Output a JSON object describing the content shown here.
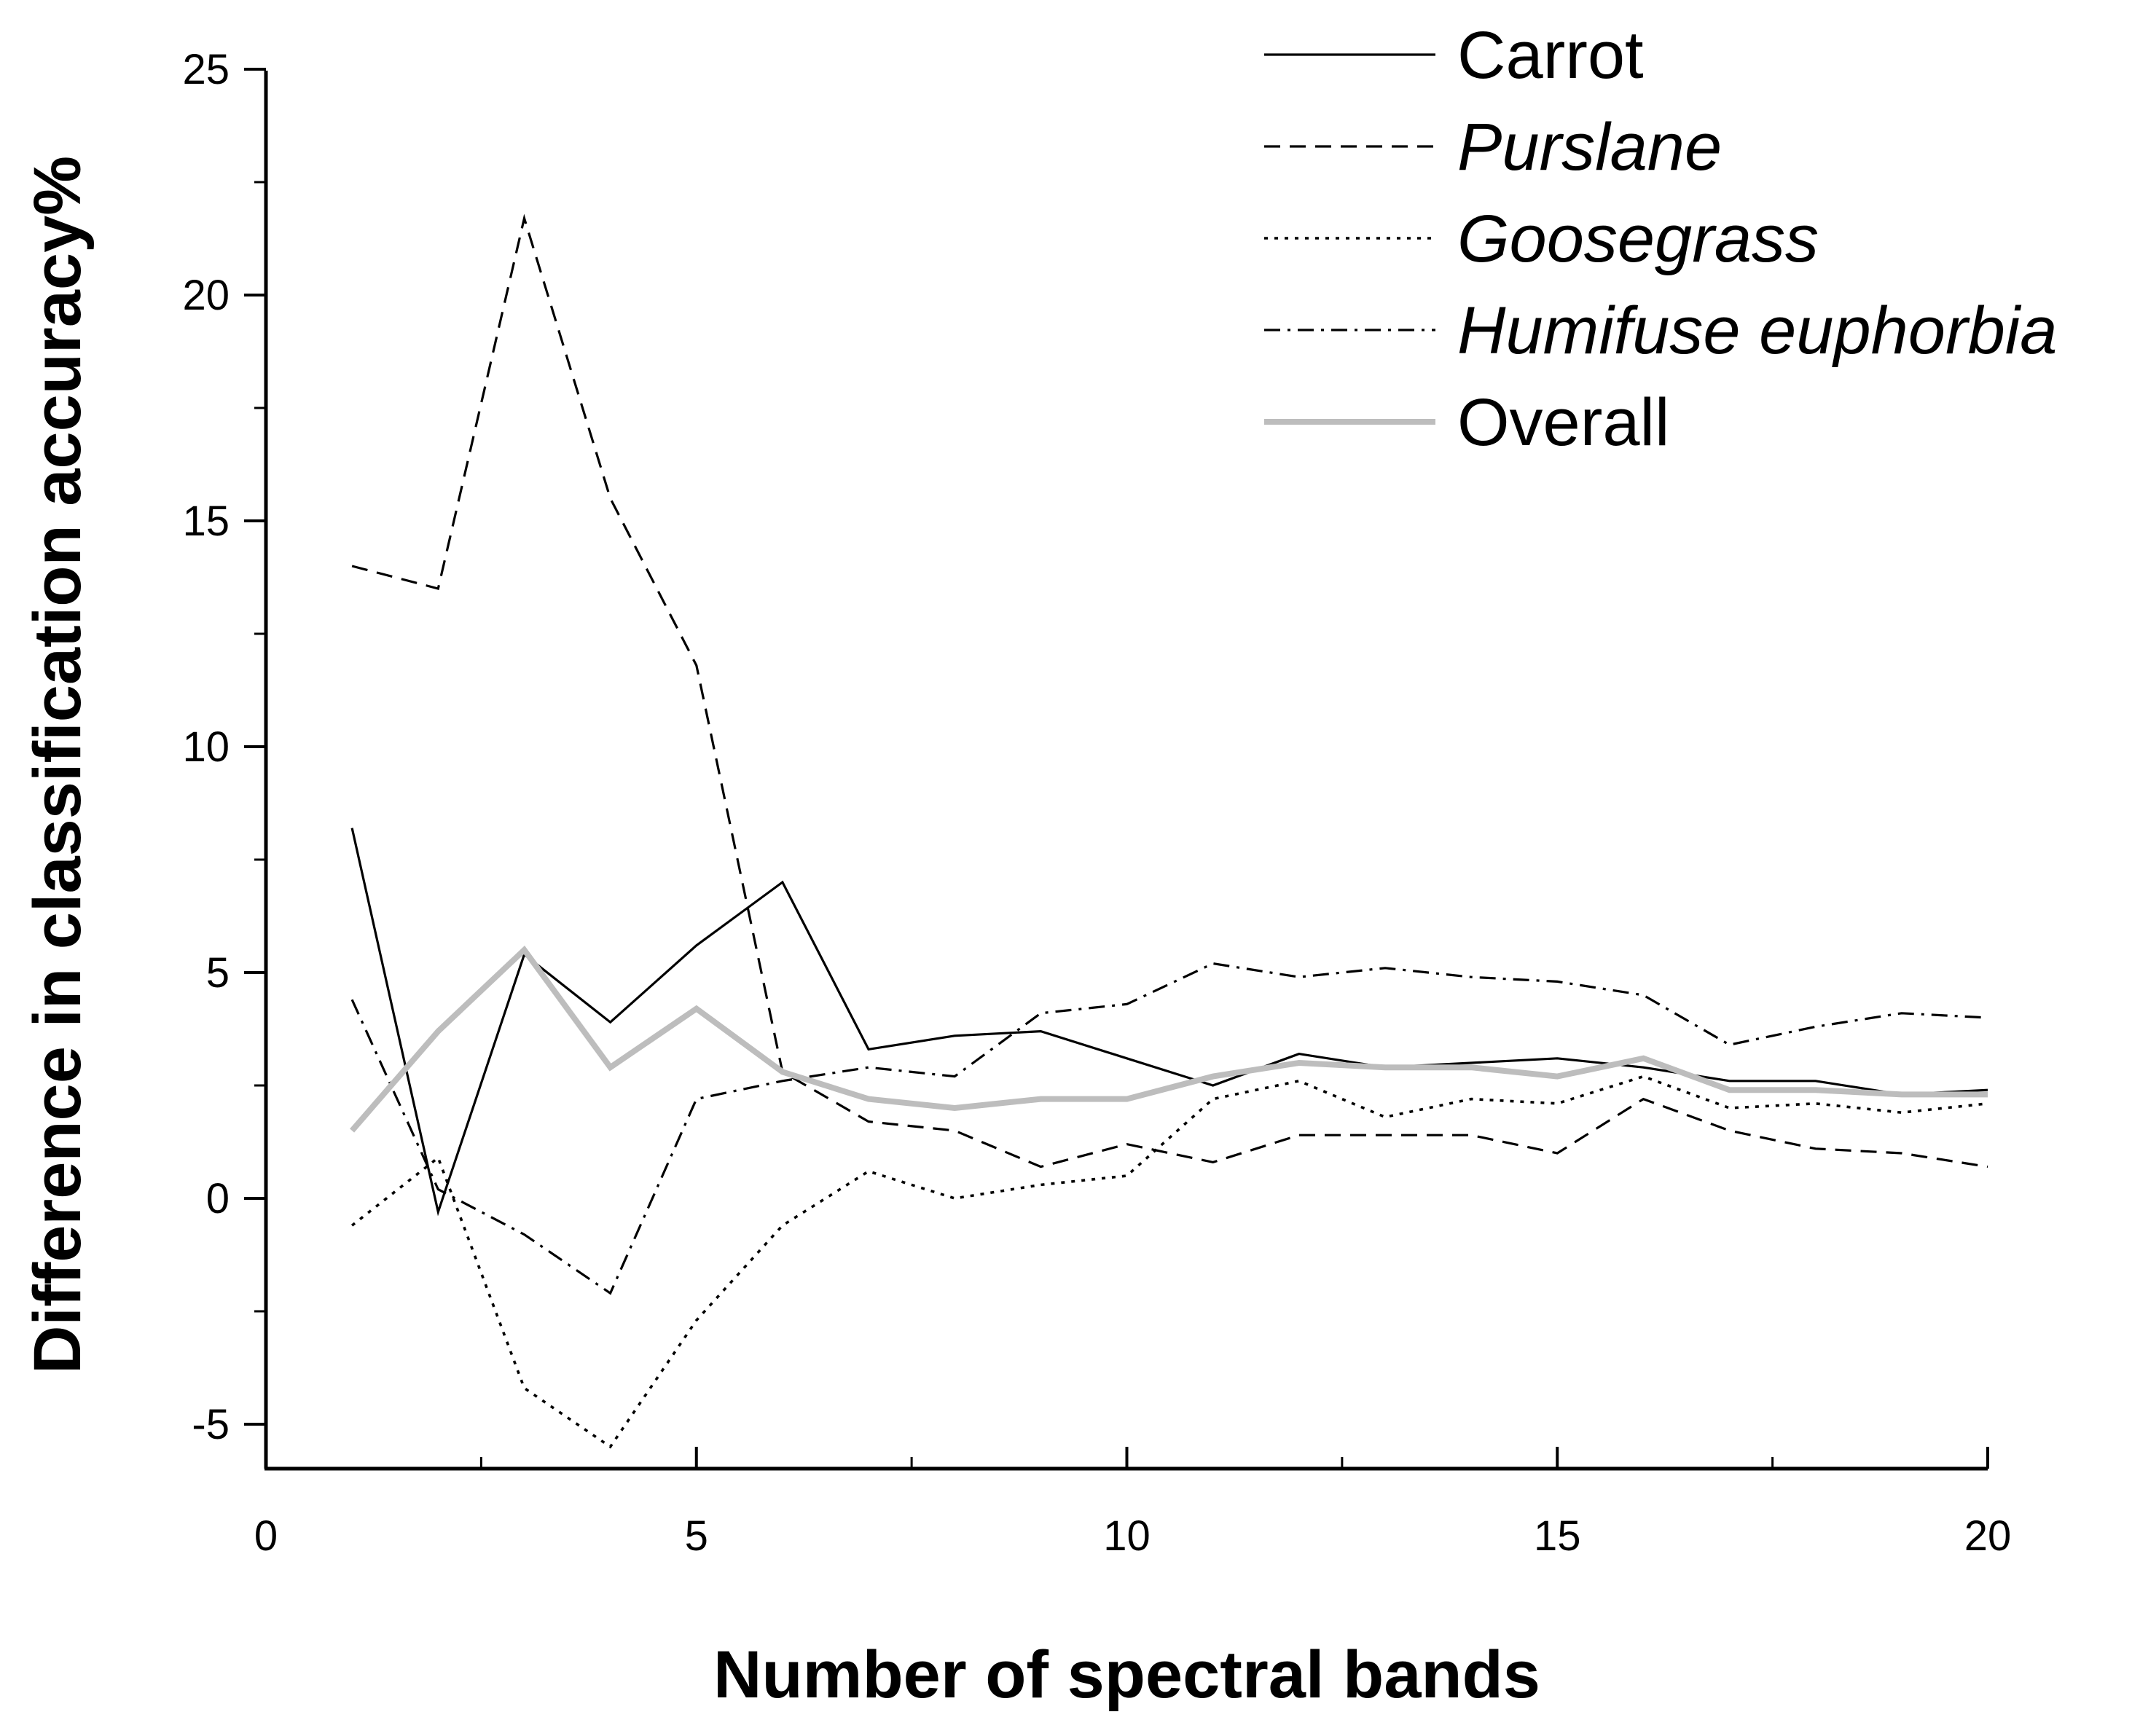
{
  "chart_data": {
    "type": "line",
    "title": "",
    "xlabel": "Number of spectral bands",
    "ylabel": "Difference in classification accuracy%",
    "xlim": [
      0,
      20
    ],
    "ylim": [
      -6,
      25
    ],
    "x_ticks": [
      0,
      5,
      10,
      15,
      20
    ],
    "y_ticks": [
      -5,
      0,
      5,
      10,
      15,
      20,
      25
    ],
    "grid": false,
    "legend_position": "top-right",
    "x": [
      1,
      2,
      3,
      4,
      5,
      6,
      7,
      8,
      9,
      10,
      11,
      12,
      13,
      14,
      15,
      16,
      17,
      18,
      19,
      20
    ],
    "series": [
      {
        "name": "Carrot",
        "italic": false,
        "style": "solid",
        "color": "#000000",
        "values": [
          8.2,
          -0.3,
          5.4,
          3.9,
          5.6,
          7.0,
          3.3,
          3.6,
          3.7,
          3.1,
          2.5,
          3.2,
          2.9,
          3.0,
          3.1,
          2.9,
          2.6,
          2.6,
          2.3,
          2.4
        ]
      },
      {
        "name": "Purslane",
        "italic": true,
        "style": "dashed",
        "color": "#000000",
        "values": [
          14.0,
          13.5,
          21.7,
          15.5,
          11.8,
          2.8,
          1.7,
          1.5,
          0.7,
          1.2,
          0.8,
          1.4,
          1.4,
          1.4,
          1.0,
          2.2,
          1.5,
          1.1,
          1.0,
          0.7
        ]
      },
      {
        "name": "Goosegrass",
        "italic": true,
        "style": "dotted",
        "color": "#000000",
        "values": [
          -0.6,
          0.9,
          -4.2,
          -5.5,
          -2.7,
          -0.6,
          0.6,
          0.0,
          0.3,
          0.5,
          2.2,
          2.6,
          1.8,
          2.2,
          2.1,
          2.7,
          2.0,
          2.1,
          1.9,
          2.1
        ]
      },
      {
        "name": "Humifuse euphorbia",
        "italic": true,
        "style": "dashdot",
        "color": "#000000",
        "values": [
          4.4,
          0.2,
          -0.8,
          -2.1,
          2.2,
          2.6,
          2.9,
          2.7,
          4.1,
          4.3,
          5.2,
          4.9,
          5.1,
          4.9,
          4.8,
          4.5,
          3.4,
          3.8,
          4.1,
          4.0
        ]
      },
      {
        "name": "Overall",
        "italic": false,
        "style": "solid-thick",
        "color": "#bdbdbd",
        "values": [
          1.5,
          3.7,
          5.5,
          2.9,
          4.2,
          2.8,
          2.2,
          2.0,
          2.2,
          2.2,
          2.7,
          3.0,
          2.9,
          2.9,
          2.7,
          3.1,
          2.4,
          2.4,
          2.3,
          2.3
        ]
      }
    ]
  }
}
